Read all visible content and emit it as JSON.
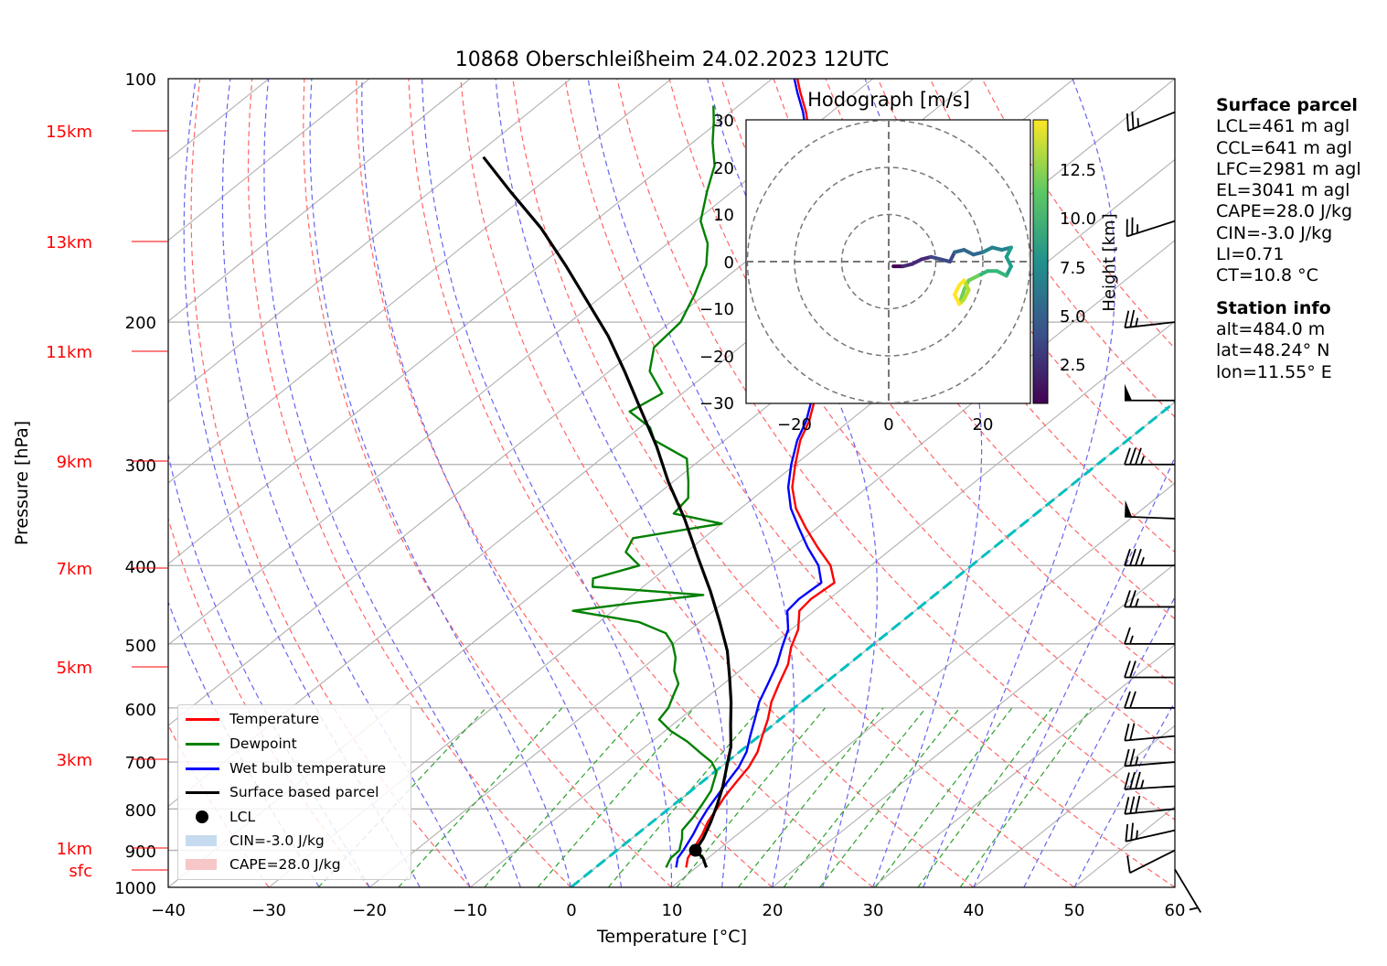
{
  "title": "10868 Oberschleißheim 24.02.2023 12UTC",
  "axes": {
    "xlabel": "Temperature [°C]",
    "ylabel": "Pressure [hPa]",
    "x_ticks": [
      "−40",
      "−30",
      "−20",
      "−10",
      "0",
      "10",
      "20",
      "30",
      "40",
      "50",
      "60"
    ],
    "y_ticks": [
      "100",
      "200",
      "300",
      "400",
      "500",
      "600",
      "700",
      "800",
      "900",
      "1000"
    ],
    "height_labels": [
      "15km",
      "13km",
      "11km",
      "9km",
      "7km",
      "5km",
      "3km",
      "1km",
      "sfc"
    ]
  },
  "legend": {
    "temperature": "Temperature",
    "dewpoint": "Dewpoint",
    "wetbulb": "Wet bulb temperature",
    "parcel": "Surface based parcel",
    "lcl": "LCL",
    "cin": "CIN=-3.0 J/kg",
    "cape": "CAPE=28.0 J/kg"
  },
  "colors": {
    "temperature": "#ff0000",
    "dewpoint": "#008000",
    "wetbulb": "#0000ff",
    "parcel": "#000000",
    "freezing": "#00bfbf",
    "dry_adiabat": "#ff6666",
    "moist_adiabat": "#6666ee",
    "mixing_ratio": "#2ca02c",
    "isotherm": "#b0b0b0",
    "height_label": "#ff0000"
  },
  "hodograph": {
    "title": "Hodograph [m/s]",
    "ticks": [
      "−30",
      "−20",
      "−10",
      "0",
      "10",
      "20",
      "30"
    ],
    "x_ticks": [
      "−20",
      "0",
      "20"
    ],
    "colorbar_label": "Height [km]",
    "colorbar_ticks": [
      "2.5",
      "5.0",
      "7.5",
      "10.0",
      "12.5"
    ],
    "colormap": "viridis"
  },
  "surface_parcel": {
    "header": "Surface parcel",
    "lines": [
      "LCL=461 m agl",
      "CCL=641 m agl",
      "LFC=2981 m agl",
      "EL=3041 m agl",
      "CAPE=28.0 J/kg",
      "CIN=-3.0 J/kg",
      "LI=0.71",
      "CT=10.8 °C"
    ]
  },
  "station_info": {
    "header": "Station info",
    "lines": [
      "alt=484.0 m",
      "lat=48.24° N",
      "lon=11.55° E"
    ]
  },
  "chart_data": {
    "type": "line",
    "title": "10868 Oberschleißheim 24.02.2023 12UTC",
    "xlabel": "Temperature [°C]",
    "ylabel": "Pressure [hPa]",
    "xlim": [
      -40,
      60
    ],
    "ylim": [
      1000,
      100
    ],
    "y_scale": "log",
    "skew": "skew-T",
    "grid": true,
    "legend_position": "lower-left",
    "series": [
      {
        "name": "Temperature",
        "key": "temperature",
        "points": [
          [
            9.0,
            945
          ],
          [
            8.0,
            920
          ],
          [
            7.5,
            900
          ],
          [
            6.5,
            860
          ],
          [
            5.5,
            830
          ],
          [
            4.8,
            800
          ],
          [
            4.0,
            770
          ],
          [
            3.4,
            740
          ],
          [
            2.8,
            710
          ],
          [
            1.8,
            680
          ],
          [
            0.3,
            650
          ],
          [
            -1.2,
            620
          ],
          [
            -3.0,
            590
          ],
          [
            -4.5,
            560
          ],
          [
            -6.0,
            530
          ],
          [
            -7.8,
            505
          ],
          [
            -9.3,
            480
          ],
          [
            -11.5,
            455
          ],
          [
            -11.8,
            440
          ],
          [
            -11.5,
            420
          ],
          [
            -14.0,
            400
          ],
          [
            -17.5,
            380
          ],
          [
            -21.0,
            360
          ],
          [
            -24.5,
            340
          ],
          [
            -27.5,
            320
          ],
          [
            -30.0,
            300
          ],
          [
            -32.5,
            280
          ],
          [
            -34.0,
            265
          ],
          [
            -36.0,
            250
          ],
          [
            -38.0,
            240
          ],
          [
            -40.3,
            230
          ],
          [
            -42.5,
            220
          ],
          [
            -45.0,
            210
          ],
          [
            -47.0,
            200
          ],
          [
            -50.0,
            185
          ],
          [
            -53.0,
            172
          ],
          [
            -55.5,
            160
          ],
          [
            -58.0,
            150
          ],
          [
            -61.5,
            140
          ],
          [
            -63.5,
            132
          ],
          [
            -66.0,
            125
          ],
          [
            -69.5,
            117
          ],
          [
            -72.5,
            110
          ],
          [
            -75.5,
            104
          ],
          [
            -77.5,
            100
          ]
        ]
      },
      {
        "name": "Wet bulb temperature",
        "key": "wetbulb",
        "points": [
          [
            8.0,
            945
          ],
          [
            7.0,
            920
          ],
          [
            6.6,
            900
          ],
          [
            5.6,
            860
          ],
          [
            4.7,
            830
          ],
          [
            3.9,
            800
          ],
          [
            3.2,
            770
          ],
          [
            2.5,
            740
          ],
          [
            1.8,
            710
          ],
          [
            0.7,
            680
          ],
          [
            -0.9,
            650
          ],
          [
            -2.5,
            620
          ],
          [
            -4.2,
            590
          ],
          [
            -5.6,
            560
          ],
          [
            -7.1,
            530
          ],
          [
            -8.7,
            505
          ],
          [
            -10.3,
            480
          ],
          [
            -12.7,
            455
          ],
          [
            -13.0,
            440
          ],
          [
            -12.8,
            420
          ],
          [
            -15.2,
            400
          ],
          [
            -18.5,
            380
          ],
          [
            -21.7,
            360
          ],
          [
            -25.0,
            340
          ],
          [
            -27.9,
            320
          ],
          [
            -30.4,
            300
          ],
          [
            -32.8,
            280
          ],
          [
            -34.3,
            265
          ],
          [
            -36.3,
            250
          ],
          [
            -38.3,
            240
          ],
          [
            -40.6,
            230
          ],
          [
            -42.8,
            220
          ],
          [
            -45.3,
            210
          ],
          [
            -47.3,
            200
          ],
          [
            -50.3,
            185
          ],
          [
            -53.3,
            172
          ],
          [
            -55.8,
            160
          ],
          [
            -58.3,
            150
          ],
          [
            -61.8,
            140
          ],
          [
            -63.8,
            132
          ],
          [
            -66.3,
            125
          ],
          [
            -69.8,
            117
          ],
          [
            -72.8,
            110
          ],
          [
            -75.8,
            104
          ],
          [
            -77.8,
            100
          ]
        ]
      },
      {
        "name": "Dewpoint",
        "key": "dewpoint",
        "points": [
          [
            7.0,
            945
          ],
          [
            6.3,
            920
          ],
          [
            6.2,
            900
          ],
          [
            5.0,
            870
          ],
          [
            4.0,
            850
          ],
          [
            3.5,
            820
          ],
          [
            2.8,
            790
          ],
          [
            2.0,
            760
          ],
          [
            0.2,
            720
          ],
          [
            -1.5,
            700
          ],
          [
            -4.0,
            680
          ],
          [
            -6.5,
            660
          ],
          [
            -9.5,
            640
          ],
          [
            -12.0,
            620
          ],
          [
            -12.5,
            600
          ],
          [
            -13.5,
            580
          ],
          [
            -14.5,
            560
          ],
          [
            -16.5,
            540
          ],
          [
            -18.0,
            520
          ],
          [
            -20.0,
            500
          ],
          [
            -22.0,
            485
          ],
          [
            -26.0,
            470
          ],
          [
            -34.0,
            455
          ],
          [
            -29.0,
            445
          ],
          [
            -23.0,
            435
          ],
          [
            -35.0,
            425
          ],
          [
            -36.0,
            415
          ],
          [
            -33.0,
            400
          ],
          [
            -36.0,
            385
          ],
          [
            -37.0,
            370
          ],
          [
            -30.0,
            355
          ],
          [
            -36.0,
            345
          ],
          [
            -36.5,
            330
          ],
          [
            -38.5,
            315
          ],
          [
            -41.5,
            295
          ],
          [
            -47.0,
            280
          ],
          [
            -49.0,
            270
          ],
          [
            -53.0,
            258
          ],
          [
            -52.0,
            245
          ],
          [
            -56.0,
            230
          ],
          [
            -58.5,
            215
          ],
          [
            -59.0,
            200
          ],
          [
            -61.0,
            185
          ],
          [
            -63.5,
            170
          ],
          [
            -66.0,
            160
          ],
          [
            -69.5,
            150
          ],
          [
            -72.5,
            138
          ],
          [
            -75.0,
            128
          ],
          [
            -78.0,
            120
          ],
          [
            -80.5,
            113
          ],
          [
            -82.5,
            108
          ]
        ]
      },
      {
        "name": "Surface based parcel",
        "key": "parcel",
        "points": [
          [
            11.0,
            945
          ],
          [
            9.5,
            920
          ],
          [
            7.8,
            900
          ],
          [
            7.1,
            870
          ],
          [
            5.8,
            830
          ],
          [
            4.3,
            790
          ],
          [
            2.6,
            750
          ],
          [
            0.6,
            710
          ],
          [
            -1.5,
            670
          ],
          [
            -4.2,
            630
          ],
          [
            -7.0,
            590
          ],
          [
            -10.2,
            550
          ],
          [
            -13.7,
            510
          ],
          [
            -18.0,
            470
          ],
          [
            -22.8,
            430
          ],
          [
            -28.3,
            390
          ],
          [
            -34.3,
            350
          ],
          [
            -40.5,
            315
          ],
          [
            -46.0,
            285
          ],
          [
            -52.5,
            255
          ],
          [
            -58.5,
            230
          ],
          [
            -64.5,
            208
          ],
          [
            -71.0,
            188
          ],
          [
            -77.5,
            170
          ],
          [
            -84.5,
            153
          ],
          [
            -92.0,
            138
          ],
          [
            -99.0,
            125
          ]
        ]
      }
    ],
    "lcl": {
      "temperature": 7.8,
      "pressure": 900
    },
    "freezing_isotherm": 0,
    "surface_pressure": 945,
    "barbs": [
      {
        "p": 950,
        "u": -3,
        "v": 5
      },
      {
        "p": 900,
        "u": 10,
        "v": 5
      },
      {
        "p": 850,
        "u": 22,
        "v": 5
      },
      {
        "p": 800,
        "u": 30,
        "v": 3
      },
      {
        "p": 750,
        "u": 33,
        "v": 2
      },
      {
        "p": 700,
        "u": 25,
        "v": 2
      },
      {
        "p": 650,
        "u": 22,
        "v": 2
      },
      {
        "p": 600,
        "u": 22,
        "v": 0
      },
      {
        "p": 550,
        "u": 22,
        "v": 0
      },
      {
        "p": 500,
        "u": 15,
        "v": 0
      },
      {
        "p": 450,
        "u": 27,
        "v": 0
      },
      {
        "p": 400,
        "u": 35,
        "v": 0
      },
      {
        "p": 350,
        "u": 50,
        "v": -2
      },
      {
        "p": 300,
        "u": 36,
        "v": 0
      },
      {
        "p": 250,
        "u": 50,
        "v": 0
      },
      {
        "p": 200,
        "u": 27,
        "v": 3
      },
      {
        "p": 150,
        "u": 25,
        "v": 8
      },
      {
        "p": 110,
        "u": 25,
        "v": 10
      }
    ],
    "hodograph_track": [
      [
        1,
        -1,
        0.5
      ],
      [
        3,
        -1,
        1.0
      ],
      [
        5,
        -0.5,
        1.5
      ],
      [
        7,
        0.5,
        2.0
      ],
      [
        9,
        1,
        2.5
      ],
      [
        11,
        0.5,
        3.0
      ],
      [
        13,
        0,
        3.5
      ],
      [
        14,
        2,
        4.0
      ],
      [
        16,
        2.5,
        4.5
      ],
      [
        18,
        1.5,
        5.0
      ],
      [
        20,
        2,
        5.5
      ],
      [
        22,
        3,
        6.0
      ],
      [
        24,
        2.5,
        6.5
      ],
      [
        26,
        3,
        7.0
      ],
      [
        25,
        1,
        7.5
      ],
      [
        26,
        -1,
        8.0
      ],
      [
        25,
        -3,
        8.5
      ],
      [
        23,
        -2,
        9.0
      ],
      [
        21,
        -2,
        9.5
      ],
      [
        19,
        -3,
        10.0
      ],
      [
        17,
        -4,
        10.5
      ],
      [
        16,
        -6,
        11.0
      ],
      [
        15,
        -9,
        11.5
      ],
      [
        16,
        -8,
        12.0
      ],
      [
        17,
        -6,
        12.5
      ],
      [
        16,
        -4,
        13.0
      ],
      [
        15,
        -5,
        13.5
      ],
      [
        14,
        -7,
        14.0
      ],
      [
        15,
        -9,
        14.5
      ]
    ]
  }
}
